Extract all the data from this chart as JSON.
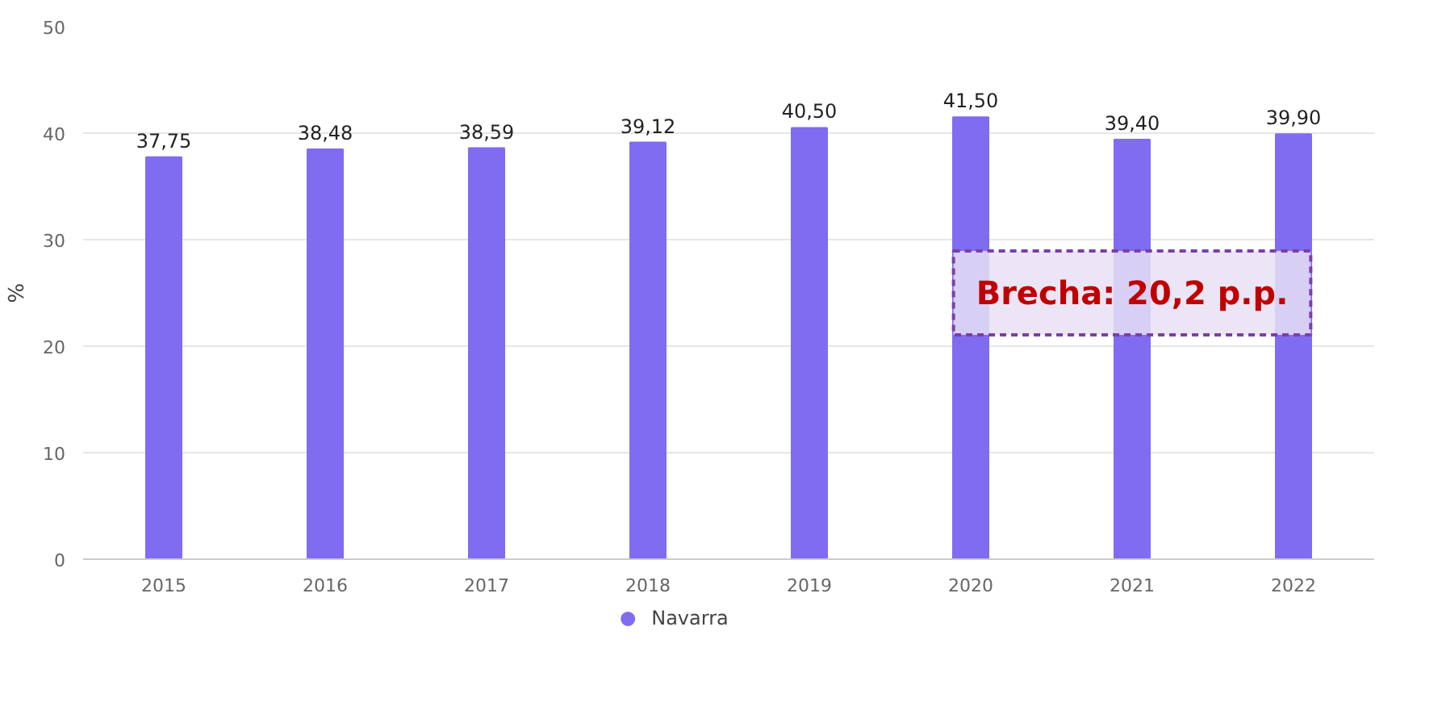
{
  "chart_data": {
    "type": "bar",
    "categories": [
      "2015",
      "2016",
      "2017",
      "2018",
      "2019",
      "2020",
      "2021",
      "2022"
    ],
    "series": [
      {
        "name": "Navarra",
        "color": "#7f6cf0",
        "values": [
          37.75,
          38.48,
          38.59,
          39.12,
          40.5,
          41.5,
          39.4,
          39.9
        ],
        "value_labels": [
          "37,75",
          "38,48",
          "38,59",
          "39,12",
          "40,50",
          "41,50",
          "39,40",
          "39,90"
        ]
      }
    ],
    "ylabel": "%",
    "ylim": [
      0,
      50
    ],
    "yticks": [
      0,
      10,
      20,
      30,
      40,
      50
    ],
    "grid": "y",
    "legend": "bottom",
    "annotations": [
      "Brecha: 20,2 p.p."
    ]
  }
}
